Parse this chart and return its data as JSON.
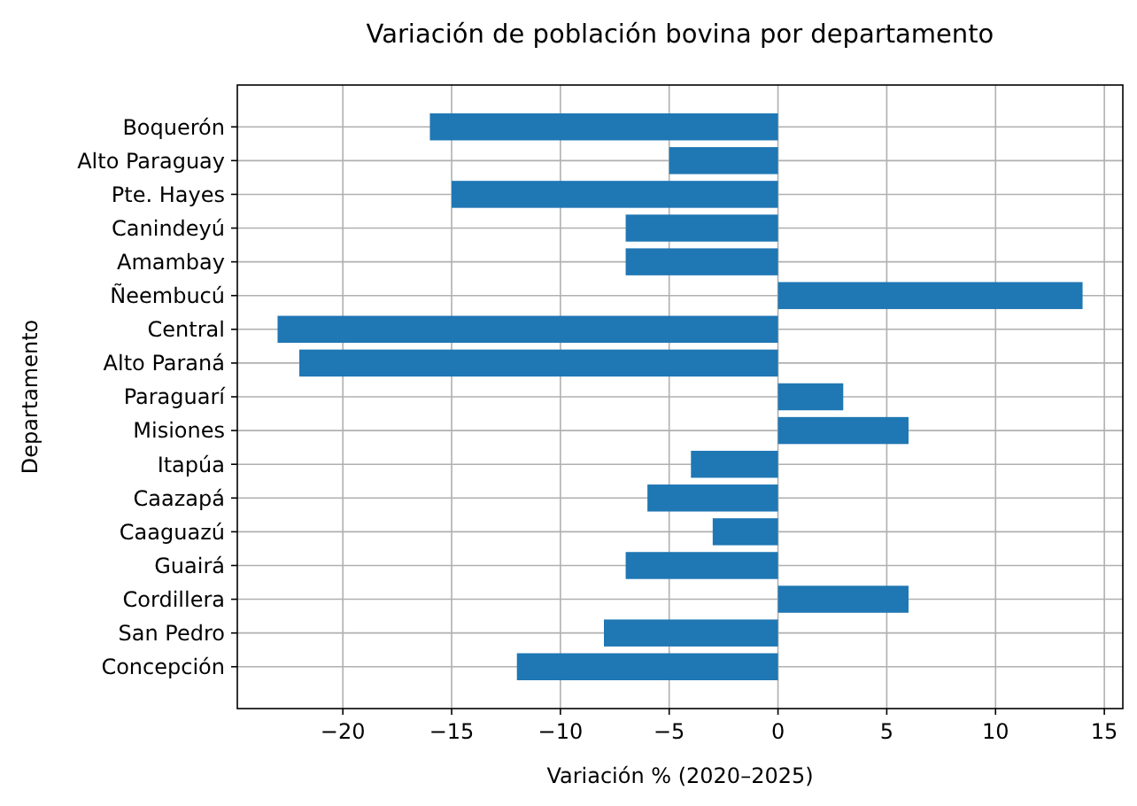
{
  "chart_data": {
    "type": "bar",
    "orientation": "horizontal",
    "title": "Variación de población bovina por departamento",
    "xlabel": "Variación % (2020–2025)",
    "ylabel": "Departamento",
    "categories": [
      "Boquerón",
      "Alto Paraguay",
      "Pte. Hayes",
      "Canindeyú",
      "Amambay",
      "Ñeembucú",
      "Central",
      "Alto Paraná",
      "Paraguarí",
      "Misiones",
      "Itapúa",
      "Caazapá",
      "Caaguazú",
      "Guairá",
      "Cordillera",
      "San Pedro",
      "Concepción"
    ],
    "values": [
      -16,
      -5,
      -15,
      -7,
      -7,
      14,
      -23,
      -22,
      3,
      6,
      -4,
      -6,
      -3,
      -7,
      6,
      -8,
      -12
    ],
    "color": "#1f77b4",
    "xlim": [
      -24.85,
      15.85
    ],
    "xticks": [
      {
        "value": -20,
        "label": "−20"
      },
      {
        "value": -15,
        "label": "−15"
      },
      {
        "value": -10,
        "label": "−10"
      },
      {
        "value": -5,
        "label": "−5"
      },
      0,
      5,
      10,
      15
    ],
    "grid": true
  }
}
